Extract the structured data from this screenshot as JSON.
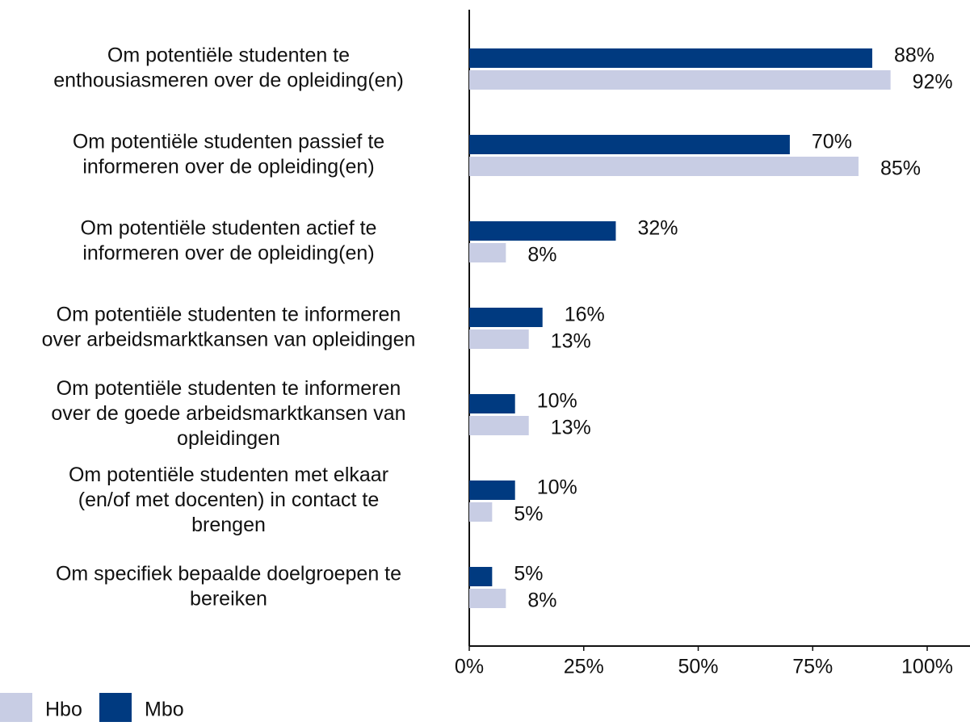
{
  "chart_data": {
    "type": "bar",
    "orientation": "horizontal",
    "categories": [
      "Om potentiële studenten te\nenthousiasmeren over de opleiding(en)",
      "Om potentiële studenten passief te\ninformeren over de opleiding(en)",
      "Om potentiële studenten actief te\ninformeren over de opleiding(en)",
      "Om potentiële studenten te informeren\nover arbeidsmarktkansen van opleidingen",
      "Om potentiële studenten te informeren\nover de goede arbeidsmarktkansen van\nopleidingen",
      "Om potentiële studenten met elkaar\n(en/of met docenten) in contact te\nbrengen",
      "Om specifiek bepaalde doelgroepen te\nbereiken"
    ],
    "series": [
      {
        "name": "Mbo",
        "color": "#003a80",
        "values": [
          88,
          70,
          32,
          16,
          10,
          10,
          5
        ],
        "value_labels": [
          "88%",
          "70%",
          "32%",
          "16%",
          "10%",
          "10%",
          "5%"
        ]
      },
      {
        "name": "Hbo",
        "color": "#c8cde4",
        "values": [
          92,
          85,
          8,
          13,
          13,
          5,
          8
        ],
        "value_labels": [
          "92%",
          "85%",
          "8%",
          "13%",
          "13%",
          "5%",
          "8%"
        ]
      }
    ],
    "xlim": [
      0,
      100
    ],
    "xticks": [
      {
        "value": 0,
        "label": "0%"
      },
      {
        "value": 25,
        "label": "25%"
      },
      {
        "value": 50,
        "label": "50%"
      },
      {
        "value": 75,
        "label": "75%"
      },
      {
        "value": 100,
        "label": "100%"
      }
    ],
    "legend": "bottom-left"
  }
}
